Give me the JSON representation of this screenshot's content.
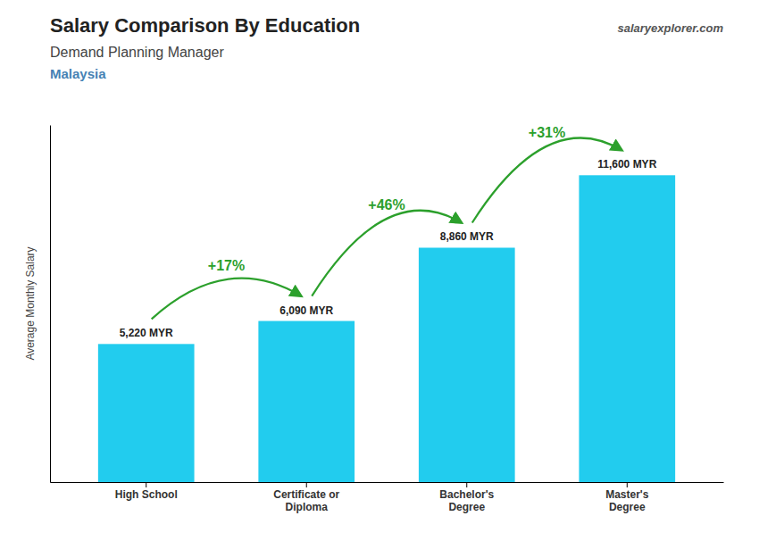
{
  "chart_data": {
    "type": "bar",
    "title": "Salary Comparison By Education",
    "subtitle": "Demand Planning Manager",
    "caption": "Malaysia",
    "source": "salaryexplorer.com",
    "y_label": "Average Monthly Salary",
    "categories": [
      "High School",
      "Certificate or\nDiploma",
      "Bachelor's\nDegree",
      "Master's\nDegree"
    ],
    "values": [
      5220,
      6090,
      8860,
      11600
    ],
    "value_labels": [
      "5,220 MYR",
      "6,090 MYR",
      "8,860 MYR",
      "11,600 MYR"
    ],
    "data_labels": true,
    "annotations": [
      "+17%",
      "+46%",
      "+31%"
    ],
    "color": "#22ccee",
    "ylim": [
      0,
      13500
    ],
    "tick_labels": "x",
    "grid": false
  }
}
